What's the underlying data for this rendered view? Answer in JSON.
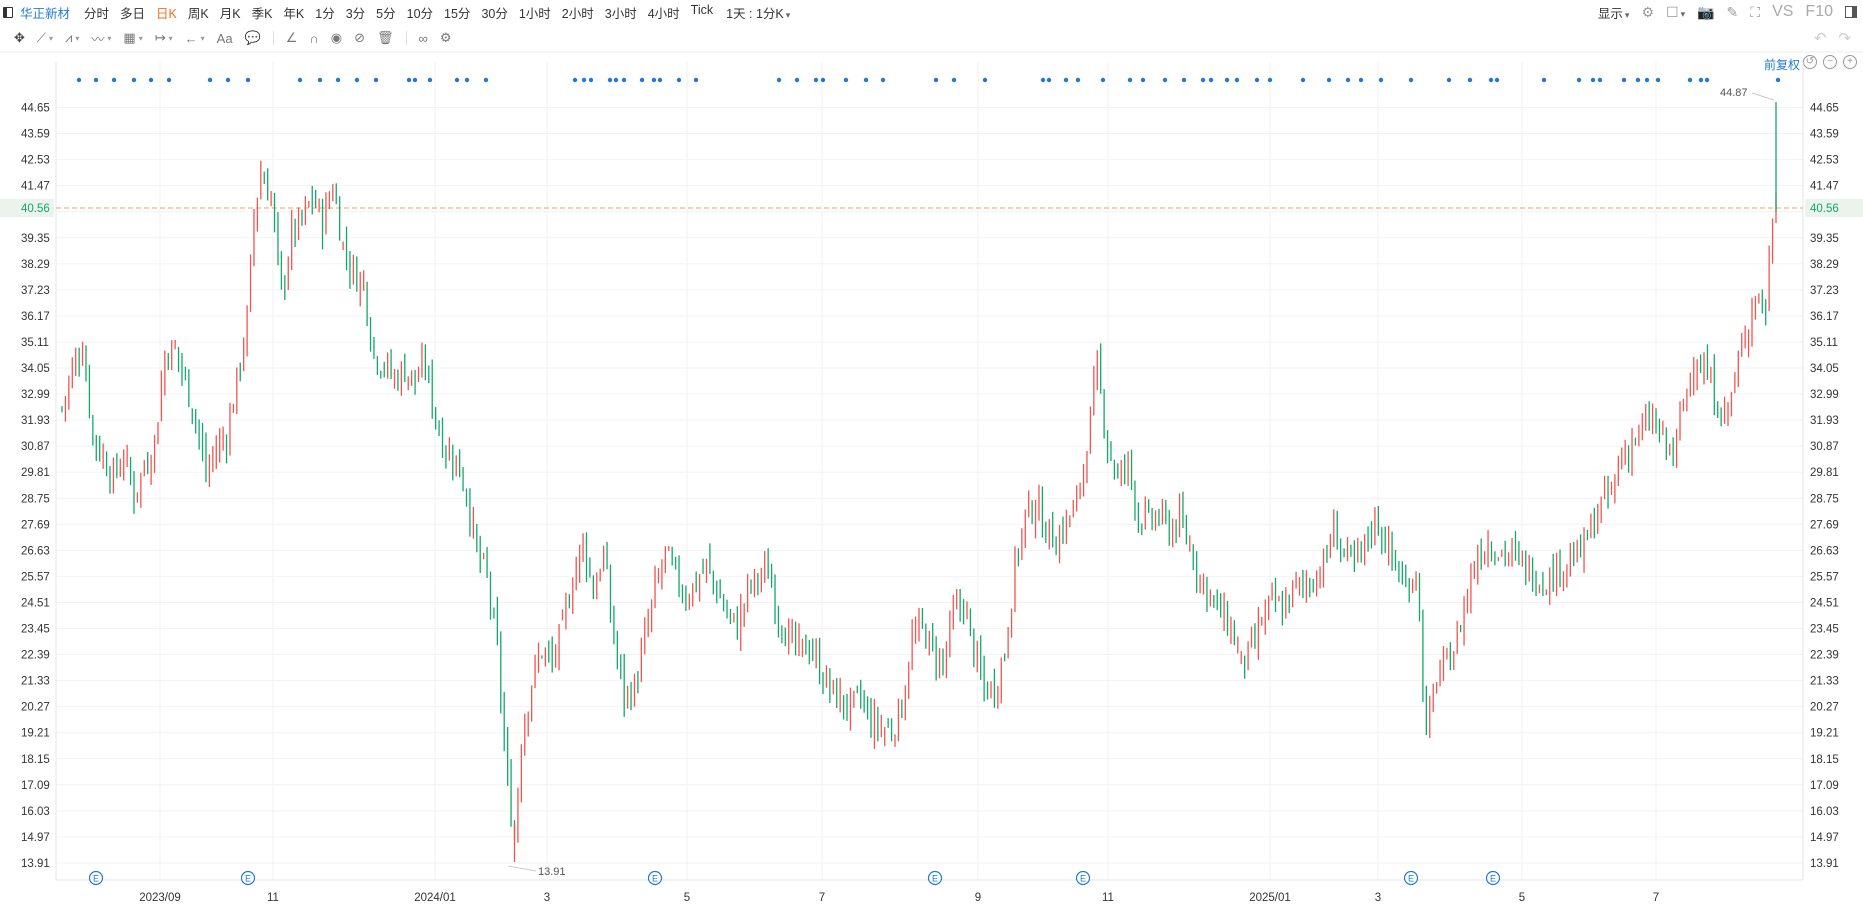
{
  "topbar": {
    "stock_name": "华正新材",
    "periods": [
      "分时",
      "多日",
      "日K",
      "周K",
      "月K",
      "季K",
      "年K",
      "1分",
      "3分",
      "5分",
      "10分",
      "15分",
      "30分",
      "1小时",
      "2小时",
      "3小时",
      "4小时",
      "Tick"
    ],
    "active_period": "日K",
    "interval": "1天 : 1分K",
    "display_label": "显示",
    "vs_label": "VS",
    "f10_label": "F10"
  },
  "toolbar": {
    "font_tool": "Aa"
  },
  "adjust_label": "前复权",
  "colors": {
    "up": "#f0554e",
    "down": "#13a86b",
    "dots": "#1f7ad6",
    "current_line": "#f5a05a"
  },
  "chart_data": {
    "type": "ohlc",
    "y_ticks": [
      "44.65",
      "43.59",
      "42.53",
      "41.47",
      "40.56",
      "39.35",
      "38.29",
      "37.23",
      "36.17",
      "35.11",
      "34.05",
      "32.99",
      "31.93",
      "30.87",
      "29.81",
      "28.75",
      "27.69",
      "26.63",
      "25.57",
      "24.51",
      "23.45",
      "22.39",
      "21.33",
      "20.27",
      "19.21",
      "18.15",
      "17.09",
      "16.03",
      "14.97",
      "13.91"
    ],
    "ylim": [
      13.91,
      44.65
    ],
    "current_price": "40.56",
    "x_ticks": [
      "2023/09",
      "11",
      "2024/01",
      "3",
      "5",
      "7",
      "9",
      "11",
      "2025/01",
      "3",
      "5",
      "7"
    ],
    "max_label": "44.87",
    "min_label": "13.91",
    "event_marker_label": "E",
    "event_markers": 8,
    "path": [
      [
        0,
        32.4
      ],
      [
        3,
        34.0
      ],
      [
        6,
        35.0
      ],
      [
        9,
        31.3
      ],
      [
        12,
        30.4
      ],
      [
        15,
        29.6
      ],
      [
        18,
        30.5
      ],
      [
        21,
        28.9
      ],
      [
        24,
        30.0
      ],
      [
        27,
        31.0
      ],
      [
        30,
        34.6
      ],
      [
        33,
        34.8
      ],
      [
        36,
        33.5
      ],
      [
        39,
        32.0
      ],
      [
        42,
        29.7
      ],
      [
        45,
        30.8
      ],
      [
        48,
        31.3
      ],
      [
        51,
        33.5
      ],
      [
        54,
        36.0
      ],
      [
        56,
        40.3
      ],
      [
        58,
        42.0
      ],
      [
        61,
        41.0
      ],
      [
        64,
        37.0
      ],
      [
        67,
        39.5
      ],
      [
        70,
        40.0
      ],
      [
        73,
        41.0
      ],
      [
        76,
        40.0
      ],
      [
        79,
        41.5
      ],
      [
        82,
        39.0
      ],
      [
        85,
        37.9
      ],
      [
        88,
        37.5
      ],
      [
        91,
        34.6
      ],
      [
        94,
        34.2
      ],
      [
        97,
        33.6
      ],
      [
        100,
        34.0
      ],
      [
        103,
        33.5
      ],
      [
        106,
        34.2
      ],
      [
        109,
        32.0
      ],
      [
        112,
        30.7
      ],
      [
        115,
        30.3
      ],
      [
        118,
        29.0
      ],
      [
        121,
        26.5
      ],
      [
        124,
        25.5
      ],
      [
        127,
        22.5
      ],
      [
        130,
        17.0
      ],
      [
        132,
        15.0
      ],
      [
        134,
        19.0
      ],
      [
        137,
        21.3
      ],
      [
        140,
        22.6
      ],
      [
        143,
        22.0
      ],
      [
        146,
        23.5
      ],
      [
        149,
        25.5
      ],
      [
        152,
        27.0
      ],
      [
        155,
        25.0
      ],
      [
        158,
        26.5
      ],
      [
        161,
        23.0
      ],
      [
        164,
        20.7
      ],
      [
        167,
        21.0
      ],
      [
        170,
        23.0
      ],
      [
        173,
        25.0
      ],
      [
        176,
        26.5
      ],
      [
        179,
        25.5
      ],
      [
        182,
        24.8
      ],
      [
        185,
        25.3
      ],
      [
        188,
        26.0
      ],
      [
        191,
        25.0
      ],
      [
        194,
        24.0
      ],
      [
        197,
        23.5
      ],
      [
        200,
        25.0
      ],
      [
        203,
        25.5
      ],
      [
        206,
        25.8
      ],
      [
        209,
        24.0
      ],
      [
        212,
        23.0
      ],
      [
        215,
        22.5
      ],
      [
        218,
        22.8
      ],
      [
        221,
        21.8
      ],
      [
        224,
        21.0
      ],
      [
        227,
        20.5
      ],
      [
        230,
        20.2
      ],
      [
        233,
        20.6
      ],
      [
        236,
        19.6
      ],
      [
        239,
        19.4
      ],
      [
        242,
        19.3
      ],
      [
        245,
        20.3
      ],
      [
        248,
        23.0
      ],
      [
        251,
        23.5
      ],
      [
        254,
        22.5
      ],
      [
        257,
        22.0
      ],
      [
        260,
        24.0
      ],
      [
        263,
        24.5
      ],
      [
        266,
        22.5
      ],
      [
        269,
        21.0
      ],
      [
        272,
        21.0
      ],
      [
        275,
        22.5
      ],
      [
        278,
        26.0
      ],
      [
        281,
        28.0
      ],
      [
        284,
        28.5
      ],
      [
        287,
        27.5
      ],
      [
        290,
        27.0
      ],
      [
        293,
        27.8
      ],
      [
        296,
        28.5
      ],
      [
        299,
        31.0
      ],
      [
        302,
        34.0
      ],
      [
        305,
        31.0
      ],
      [
        308,
        29.5
      ],
      [
        311,
        30.2
      ],
      [
        314,
        28.0
      ],
      [
        317,
        27.8
      ],
      [
        320,
        28.0
      ],
      [
        323,
        27.5
      ],
      [
        326,
        27.8
      ],
      [
        329,
        26.8
      ],
      [
        332,
        25.5
      ],
      [
        335,
        24.8
      ],
      [
        338,
        24.0
      ],
      [
        341,
        23.5
      ],
      [
        344,
        22.0
      ],
      [
        347,
        22.5
      ],
      [
        350,
        23.8
      ],
      [
        353,
        24.5
      ],
      [
        356,
        24.2
      ],
      [
        359,
        25.0
      ],
      [
        362,
        25.2
      ],
      [
        365,
        25.5
      ],
      [
        368,
        26.0
      ],
      [
        371,
        27.5
      ],
      [
        374,
        26.5
      ],
      [
        377,
        26.0
      ],
      [
        380,
        26.8
      ],
      [
        383,
        28.0
      ],
      [
        386,
        27.0
      ],
      [
        389,
        26.0
      ],
      [
        392,
        25.0
      ],
      [
        395,
        26.0
      ],
      [
        398,
        19.0
      ],
      [
        401,
        21.5
      ],
      [
        404,
        22.0
      ],
      [
        407,
        23.0
      ],
      [
        410,
        25.0
      ],
      [
        413,
        26.5
      ],
      [
        416,
        27.0
      ],
      [
        419,
        26.6
      ],
      [
        422,
        26.5
      ],
      [
        425,
        26.2
      ],
      [
        428,
        25.8
      ],
      [
        431,
        25.5
      ],
      [
        434,
        25.5
      ],
      [
        437,
        26.0
      ],
      [
        440,
        26.3
      ],
      [
        443,
        26.5
      ],
      [
        446,
        27.5
      ],
      [
        449,
        28.5
      ],
      [
        452,
        29.0
      ],
      [
        455,
        30.5
      ],
      [
        458,
        31.0
      ],
      [
        461,
        31.5
      ],
      [
        464,
        32.0
      ],
      [
        467,
        31.0
      ],
      [
        470,
        30.5
      ],
      [
        473,
        32.5
      ],
      [
        476,
        34.5
      ],
      [
        479,
        34.0
      ],
      [
        482,
        33.0
      ],
      [
        485,
        32.0
      ],
      [
        488,
        33.5
      ],
      [
        491,
        35.5
      ],
      [
        494,
        37.0
      ],
      [
        497,
        36.5
      ],
      [
        499,
        40.2
      ],
      [
        500,
        41.2
      ]
    ]
  }
}
